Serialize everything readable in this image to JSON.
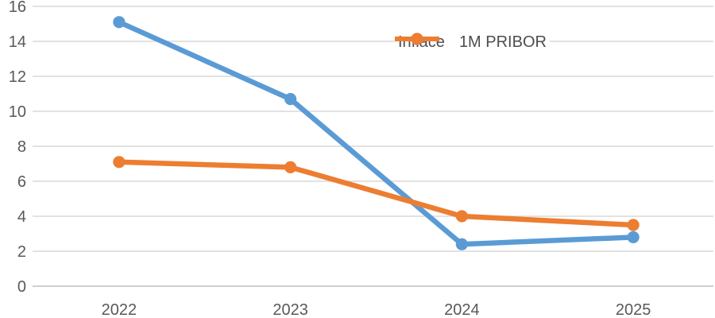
{
  "chart_data": {
    "type": "line",
    "categories": [
      "2022",
      "2023",
      "2024",
      "2025"
    ],
    "series": [
      {
        "name": "Inflace",
        "color": "#5B9BD5",
        "values": [
          15.1,
          10.7,
          2.4,
          2.8
        ]
      },
      {
        "name": "1M PRIBOR",
        "color": "#ED7D31",
        "values": [
          7.1,
          6.8,
          4.0,
          3.5
        ]
      }
    ],
    "ylim": [
      0,
      16
    ],
    "ytick_step": 2,
    "yticks": [
      0,
      2,
      4,
      6,
      8,
      10,
      12,
      14,
      16
    ],
    "grid": true,
    "legend_position": "inside-top-right",
    "colors": {
      "gridline": "#D9D9D9",
      "zero_line": "#BFBFBF",
      "tick_text": "#595959",
      "background": "#FFFFFF"
    },
    "marker": "circle"
  }
}
